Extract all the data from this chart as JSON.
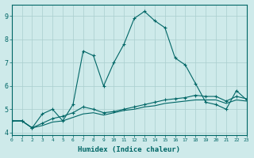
{
  "xlabel": "Humidex (Indice chaleur)",
  "background_color": "#ceeaea",
  "grid_color": "#aacece",
  "line_color": "#006666",
  "x_values": [
    0,
    1,
    2,
    3,
    4,
    5,
    6,
    7,
    8,
    9,
    10,
    11,
    12,
    13,
    14,
    15,
    16,
    17,
    18,
    19,
    20,
    21,
    22,
    23
  ],
  "series1": [
    4.5,
    4.5,
    4.2,
    4.8,
    5.0,
    4.5,
    5.2,
    7.5,
    7.3,
    6.0,
    7.0,
    7.8,
    8.9,
    9.2,
    8.8,
    8.5,
    7.2,
    6.9,
    6.1,
    5.3,
    5.2,
    5.0,
    5.8,
    5.4
  ],
  "series2": [
    4.5,
    4.5,
    4.2,
    4.4,
    4.6,
    4.7,
    4.85,
    5.1,
    5.0,
    4.85,
    4.9,
    5.0,
    5.1,
    5.2,
    5.3,
    5.4,
    5.45,
    5.5,
    5.6,
    5.55,
    5.55,
    5.35,
    5.55,
    5.45
  ],
  "series3": [
    4.5,
    4.5,
    4.2,
    4.3,
    4.45,
    4.5,
    4.65,
    4.8,
    4.85,
    4.75,
    4.85,
    4.95,
    5.0,
    5.1,
    5.15,
    5.25,
    5.3,
    5.35,
    5.4,
    5.4,
    5.4,
    5.25,
    5.4,
    5.35
  ],
  "ylim": [
    3.9,
    9.5
  ],
  "yticks": [
    4,
    5,
    6,
    7,
    8,
    9
  ],
  "xlim": [
    0,
    23
  ]
}
